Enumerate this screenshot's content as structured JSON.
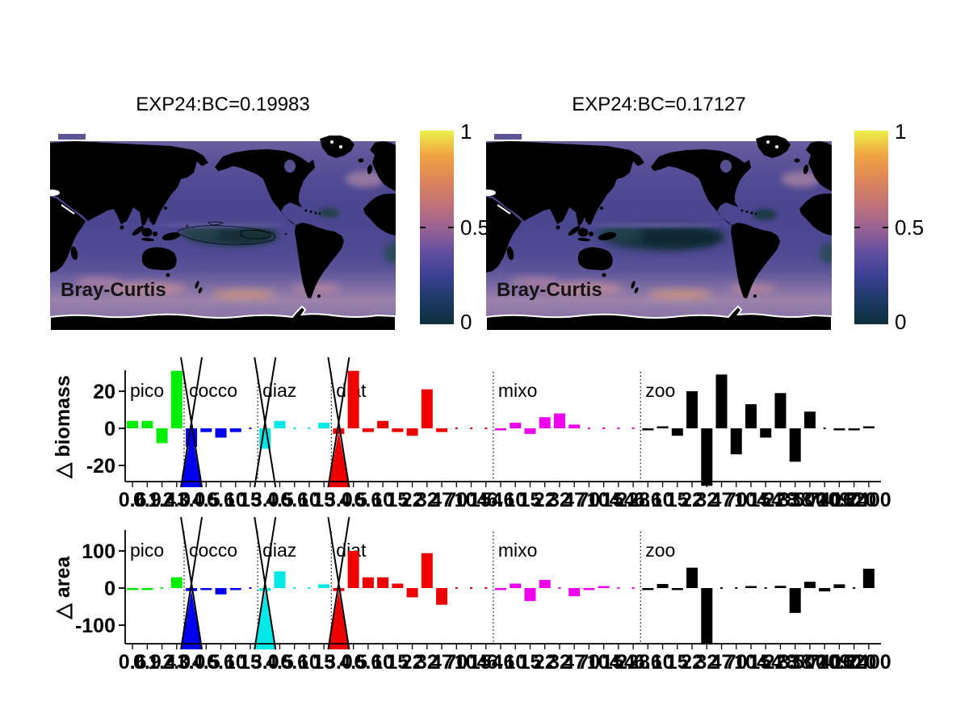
{
  "page": {
    "background": "#ffffff"
  },
  "maps": [
    {
      "title": "EXP24:BC=0.19983",
      "corner_label": "Bray-Curtis",
      "variant": "contoured",
      "colorbar": {
        "ticks": [
          "1",
          "0.5",
          "0"
        ]
      }
    },
    {
      "title": "EXP24:BC=0.17127",
      "corner_label": "Bray-Curtis",
      "variant": "plain",
      "colorbar": {
        "ticks": [
          "1",
          "0.5",
          "0"
        ]
      }
    }
  ],
  "colormap": {
    "description": "thermal-style colormap, 0 = dark teal, 1 = yellow",
    "stops": [
      "#0e2f3d",
      "#1c3a64",
      "#3c4094",
      "#6650a0",
      "#9a6292",
      "#c17377",
      "#de8758",
      "#f0a342",
      "#eef04b"
    ],
    "land_color": "#000000"
  },
  "chart_data": [
    {
      "type": "bar",
      "ylabel": "△ biomass",
      "yticks": [
        {
          "v": 20,
          "label": "20"
        },
        {
          "v": 0,
          "label": "0"
        },
        {
          "v": -20,
          "label": "-20"
        }
      ],
      "ylim": [
        -31,
        31
      ],
      "grid": false,
      "groups": [
        {
          "name": "pico",
          "color": "#00ee00",
          "sizes": [
            "0.6",
            "0.9",
            "1.4",
            "2.0"
          ],
          "values": [
            4,
            4,
            -8,
            31
          ]
        },
        {
          "name": "cocco",
          "color": "#0000ee",
          "sizes": [
            "3.0",
            "4.5",
            "6.6",
            "10",
            "15"
          ],
          "values": [
            -10,
            -2,
            -5,
            -2,
            0
          ],
          "offscale": {
            "index": 0,
            "wedge": true
          }
        },
        {
          "name": "diaz",
          "color": "#00e8e8",
          "sizes": [
            "3.0",
            "4.5",
            "6.6",
            "10",
            "15"
          ],
          "values": [
            -11,
            4,
            0,
            0,
            3
          ],
          "offscale": {
            "index": 0,
            "wedge": false
          }
        },
        {
          "name": "diat",
          "color": "#ee0000",
          "sizes": [
            "3.0",
            "4.5",
            "6.6",
            "10",
            "15",
            "22",
            "32",
            "47",
            "70",
            "104",
            "154"
          ],
          "values": [
            -3,
            31,
            -2,
            4,
            -2,
            -4,
            21,
            -2,
            0,
            0,
            0
          ],
          "offscale": {
            "index": 0,
            "wedge": true
          }
        },
        {
          "name": "mixo",
          "color": "#ee00ee",
          "sizes": [
            "6.6",
            "10",
            "15",
            "22",
            "32",
            "47",
            "70",
            "104",
            "154",
            "228"
          ],
          "values": [
            -1,
            3,
            -3,
            6,
            8,
            2,
            0,
            0,
            0,
            0
          ]
        },
        {
          "name": "zoo",
          "color": "#000000",
          "sizes": [
            "6.6",
            "10",
            "15",
            "22",
            "32",
            "47",
            "70",
            "104",
            "154",
            "228",
            "338",
            "500",
            "740",
            "1090",
            "1620",
            "2400"
          ],
          "values": [
            -1,
            1,
            -4,
            20,
            -31,
            29,
            -14,
            13,
            -5,
            19,
            -18,
            9,
            0,
            -1,
            -1,
            1
          ]
        }
      ]
    },
    {
      "type": "bar",
      "ylabel": "△ area",
      "yticks": [
        {
          "v": 100,
          "label": "100"
        },
        {
          "v": 0,
          "label": "0"
        },
        {
          "v": -100,
          "label": "-100"
        }
      ],
      "ylim": [
        -155,
        155
      ],
      "grid": false,
      "groups": [
        {
          "name": "pico",
          "color": "#00ee00",
          "sizes": [
            "0.6",
            "0.9",
            "1.4",
            "2.0"
          ],
          "values": [
            -4,
            -4,
            0,
            29
          ]
        },
        {
          "name": "cocco",
          "color": "#0000ee",
          "sizes": [
            "3.0",
            "4.5",
            "6.6",
            "10",
            "15"
          ],
          "values": [
            -8,
            -4,
            -17,
            -4,
            0
          ],
          "offscale": {
            "index": 0,
            "wedge": true
          }
        },
        {
          "name": "diaz",
          "color": "#00e8e8",
          "sizes": [
            "3.0",
            "4.5",
            "6.6",
            "10",
            "15"
          ],
          "values": [
            -8,
            45,
            0,
            0,
            10
          ],
          "offscale": {
            "index": 0,
            "wedge": true
          }
        },
        {
          "name": "diat",
          "color": "#ee0000",
          "sizes": [
            "3.0",
            "4.5",
            "6.6",
            "10",
            "15",
            "22",
            "32",
            "47",
            "70",
            "104",
            "154"
          ],
          "values": [
            -8,
            100,
            29,
            29,
            12,
            -25,
            94,
            -45,
            0,
            0,
            0
          ],
          "offscale": {
            "index": 0,
            "wedge": true
          }
        },
        {
          "name": "mixo",
          "color": "#ee00ee",
          "sizes": [
            "6.6",
            "10",
            "15",
            "22",
            "32",
            "47",
            "70",
            "104",
            "154",
            "228"
          ],
          "values": [
            -4,
            12,
            -35,
            22,
            0,
            -22,
            -3,
            2,
            0,
            0
          ]
        },
        {
          "name": "zoo",
          "color": "#000000",
          "sizes": [
            "6.6",
            "10",
            "15",
            "22",
            "32",
            "47",
            "70",
            "104",
            "154",
            "228",
            "338",
            "500",
            "740",
            "1090",
            "1620",
            "2400"
          ],
          "values": [
            -2,
            11,
            -4,
            55,
            -152,
            0,
            0,
            4,
            0,
            6,
            -67,
            17,
            -9,
            10,
            0,
            52
          ]
        }
      ]
    }
  ]
}
